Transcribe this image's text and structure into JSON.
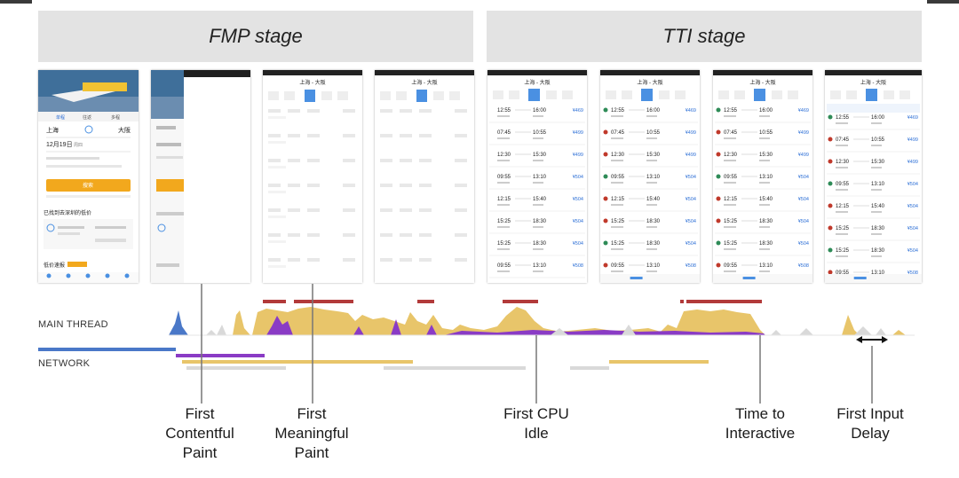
{
  "stages": {
    "fmp": "FMP stage",
    "tti": "TTI stage"
  },
  "rows": {
    "main_thread": "MAIN THREAD",
    "network": "NETWORK"
  },
  "milestones": [
    {
      "id": "fcp",
      "label": "First\nContentful\nPaint"
    },
    {
      "id": "fmp",
      "label": "First\nMeaningful\nPaint"
    },
    {
      "id": "fci",
      "label": "First CPU\nIdle"
    },
    {
      "id": "tti",
      "label": "Time to\nInteractive"
    },
    {
      "id": "fid",
      "label": "First Input\nDelay"
    }
  ],
  "app": {
    "route_from": "上海",
    "route_to": "大阪",
    "date": "12月19日",
    "weekday": "周四",
    "search_button": "搜索",
    "tab_oneway": "单程",
    "tab_return": "往返",
    "tab_multi": "多程",
    "found_text": "已找到去深圳的低价",
    "low_price_text": "低价速报",
    "header_route": "上海 - 大阪",
    "flights": [
      {
        "dep": "12:55",
        "arr": "16:00",
        "price": "¥469"
      },
      {
        "dep": "07:45",
        "arr": "10:55",
        "price": "¥499"
      },
      {
        "dep": "12:30",
        "arr": "15:30",
        "price": "¥499"
      },
      {
        "dep": "09:55",
        "arr": "13:10",
        "price": "¥504"
      },
      {
        "dep": "12:15",
        "arr": "15:40",
        "price": "¥504"
      },
      {
        "dep": "15:25",
        "arr": "18:30",
        "price": "¥504"
      },
      {
        "dep": "15:25",
        "arr": "18:30",
        "price": "¥504"
      },
      {
        "dep": "09:55",
        "arr": "13:10",
        "price": "¥508"
      }
    ]
  },
  "colors": {
    "scripting": "#e8c56a",
    "rendering": "#8a3bc5",
    "loading": "#4a78c8",
    "long_task": "#b23a3a",
    "idle": "#d9d9d9"
  }
}
